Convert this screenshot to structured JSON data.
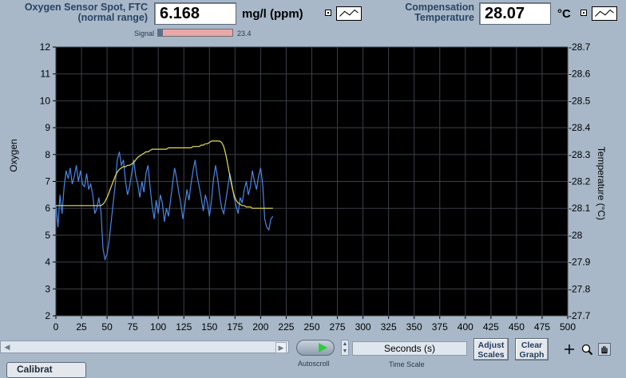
{
  "oxygen": {
    "label_line1": "Oxygen Sensor Spot, FTC",
    "label_line2": "(normal range)",
    "value": "6.168",
    "unit": "mg/l (ppm)",
    "signal_label": "Signal",
    "signal_value": "23.4",
    "signal_fraction": 0.06
  },
  "temperature": {
    "label_line1": "Compensation",
    "label_line2": "Temperature",
    "value": "28.07",
    "unit": "°C"
  },
  "graph": {
    "left_axis_label": "Oxygen",
    "right_axis_label": "Temperature (°C)"
  },
  "controls": {
    "autoscroll_label": "Autoscroll",
    "time_scale_value": "Seconds (s)",
    "time_scale_label": "Time Scale",
    "adjust_scales_l1": "Adjust",
    "adjust_scales_l2": "Scales",
    "clear_graph_l1": "Clear",
    "clear_graph_l2": "Graph",
    "bottom_button_text": "Calibrat"
  },
  "colors": {
    "plot_bg": "#000000",
    "grid": "#3a3f48",
    "oxygen_series": "#4a86e8",
    "temperature_series": "#e8e050",
    "signal_fill": "#e8a8a8"
  },
  "chart_data": {
    "type": "line",
    "x": [
      0,
      2,
      4,
      6,
      8,
      10,
      12,
      14,
      16,
      18,
      20,
      22,
      24,
      26,
      28,
      30,
      32,
      34,
      36,
      38,
      40,
      42,
      44,
      46,
      48,
      50,
      52,
      54,
      56,
      58,
      60,
      62,
      64,
      66,
      68,
      70,
      72,
      74,
      76,
      78,
      80,
      82,
      84,
      86,
      88,
      90,
      92,
      94,
      96,
      98,
      100,
      102,
      104,
      106,
      108,
      110,
      112,
      114,
      116,
      118,
      120,
      122,
      124,
      126,
      128,
      130,
      132,
      134,
      136,
      138,
      140,
      142,
      144,
      146,
      148,
      150,
      152,
      154,
      156,
      158,
      160,
      162,
      164,
      166,
      168,
      170,
      172,
      174,
      176,
      178,
      180,
      182,
      184,
      186,
      188,
      190,
      192,
      194,
      196,
      198,
      200,
      202,
      204,
      206,
      208,
      210,
      212
    ],
    "xlim": [
      0,
      500
    ],
    "x_ticks": [
      0,
      25,
      50,
      75,
      100,
      125,
      150,
      175,
      200,
      225,
      250,
      275,
      300,
      325,
      350,
      375,
      400,
      425,
      450,
      475,
      500
    ],
    "ylabel": "Oxygen",
    "y2label": "Temperature (°C)",
    "ylim": [
      2,
      12
    ],
    "y_ticks": [
      2,
      3,
      4,
      5,
      6,
      7,
      8,
      9,
      10,
      11,
      12
    ],
    "y2lim": [
      27.7,
      28.7
    ],
    "y2_ticks": [
      "-27.7",
      "-27.8",
      "-27.9",
      "-28",
      "-28.1",
      "-28.2",
      "-28.3",
      "-28.4",
      "-28.5",
      "-28.6",
      "-28.7"
    ],
    "series": [
      {
        "axis": "left",
        "color": "#4a86e8",
        "values": [
          6.1,
          5.3,
          6.5,
          5.8,
          6.8,
          7.4,
          7.1,
          7.5,
          6.9,
          7.2,
          7.6,
          7.0,
          7.4,
          6.9,
          6.8,
          7.3,
          6.7,
          6.9,
          6.5,
          5.8,
          6.0,
          6.4,
          5.9,
          4.5,
          4.1,
          4.3,
          4.8,
          5.5,
          6.2,
          6.9,
          7.8,
          8.1,
          7.6,
          7.8,
          7.0,
          6.5,
          6.8,
          7.3,
          7.8,
          7.2,
          6.9,
          6.4,
          7.0,
          6.6,
          7.3,
          7.6,
          6.8,
          6.1,
          5.6,
          6.3,
          5.8,
          6.5,
          6.2,
          5.5,
          6.0,
          5.7,
          6.3,
          6.9,
          7.5,
          7.1,
          6.6,
          6.2,
          5.6,
          6.1,
          6.7,
          6.3,
          6.9,
          7.4,
          7.8,
          7.2,
          6.8,
          6.4,
          5.9,
          6.5,
          6.2,
          5.7,
          6.3,
          7.1,
          7.6,
          7.1,
          6.5,
          6.0,
          5.8,
          6.3,
          6.8,
          7.3,
          6.9,
          6.4,
          6.1,
          5.8,
          6.4,
          6.2,
          6.7,
          7.0,
          6.5,
          6.8,
          7.4,
          7.0,
          6.7,
          7.2,
          7.5,
          6.9,
          5.6,
          5.3,
          5.2,
          5.6,
          5.7
        ]
      },
      {
        "axis": "right",
        "color": "#e8e050",
        "values": [
          28.11,
          28.11,
          28.11,
          28.11,
          28.11,
          28.11,
          28.11,
          28.11,
          28.11,
          28.11,
          28.11,
          28.11,
          28.11,
          28.11,
          28.11,
          28.11,
          28.11,
          28.11,
          28.11,
          28.11,
          28.11,
          28.11,
          28.11,
          28.115,
          28.125,
          28.14,
          28.16,
          28.18,
          28.2,
          28.22,
          28.235,
          28.245,
          28.25,
          28.255,
          28.255,
          28.26,
          28.26,
          28.265,
          28.27,
          28.28,
          28.29,
          28.295,
          28.3,
          28.305,
          28.31,
          28.31,
          28.315,
          28.32,
          28.32,
          28.32,
          28.32,
          28.32,
          28.32,
          28.32,
          28.32,
          28.325,
          28.325,
          28.325,
          28.325,
          28.325,
          28.325,
          28.325,
          28.325,
          28.325,
          28.325,
          28.325,
          28.325,
          28.33,
          28.33,
          28.33,
          28.33,
          28.335,
          28.335,
          28.34,
          28.34,
          28.345,
          28.35,
          28.35,
          28.35,
          28.35,
          28.35,
          28.345,
          28.33,
          28.3,
          28.26,
          28.22,
          28.18,
          28.15,
          28.13,
          28.12,
          28.115,
          28.11,
          28.11,
          28.105,
          28.105,
          28.105,
          28.1,
          28.1,
          28.1,
          28.1,
          28.1,
          28.1,
          28.1,
          28.1,
          28.1,
          28.1,
          28.1
        ]
      }
    ]
  }
}
